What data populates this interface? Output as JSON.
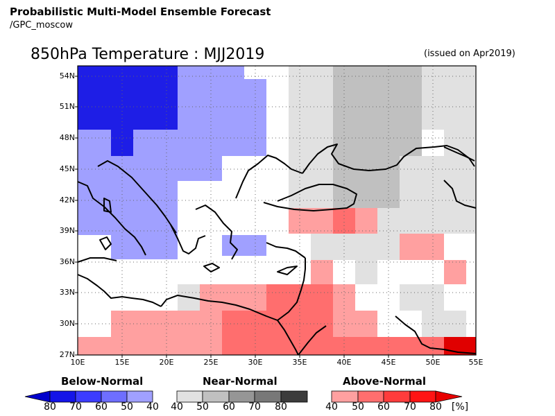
{
  "header": {
    "line1": "Probabilistic Multi-Model Ensemble Forecast",
    "line2": "/GPC_moscow"
  },
  "map": {
    "title": "850hPa Temperature : MJJ2019",
    "issued": "(issued on Apr2019)",
    "lat_labels": [
      "54N",
      "51N",
      "48N",
      "45N",
      "42N",
      "39N",
      "36N",
      "33N",
      "30N",
      "27N"
    ],
    "lon_labels": [
      "10E",
      "15E",
      "20E",
      "25E",
      "30E",
      "35E",
      "40E",
      "45E",
      "50E",
      "55E"
    ]
  },
  "legend": {
    "below_title": "Below-Normal",
    "near_title": "Near-Normal",
    "above_title": "Above-Normal",
    "below_labels": [
      "80",
      "70",
      "60",
      "50",
      "40"
    ],
    "near_labels": [
      "40",
      "50",
      "60",
      "70",
      "80"
    ],
    "above_labels": [
      "40",
      "50",
      "60",
      "70",
      "80"
    ],
    "unit": "[%]",
    "below_colors": [
      "#0000cc",
      "#1414e8",
      "#3c3cff",
      "#6e6eff",
      "#a0a0ff"
    ],
    "near_colors": [
      "#e1e1e1",
      "#c0c0c0",
      "#969696",
      "#787878",
      "#3c3c3c"
    ],
    "above_colors": [
      "#ffa0a0",
      "#ff6e6e",
      "#ff3c3c",
      "#ff1414",
      "#e80000"
    ]
  },
  "grid_colors": {
    "b50": "#1e1ee6",
    "b40": "#a0a0ff",
    "n40": "#e1e1e1",
    "n50": "#c0c0c0",
    "a40": "#ffa0a0",
    "a50": "#ff6e6e",
    "a60": "#ff4a4a",
    "a70": "#e00000"
  }
}
